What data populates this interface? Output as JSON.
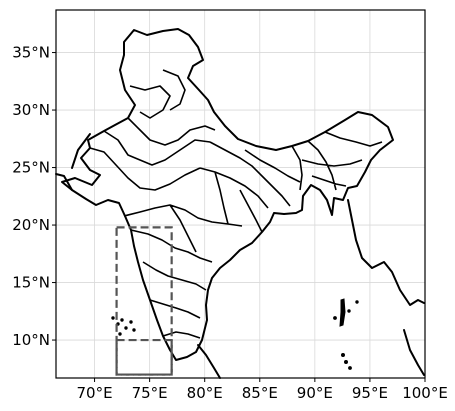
{
  "map": {
    "projection": "PlateCarree",
    "extent": {
      "lon": [
        66.5,
        100
      ],
      "lat": [
        6.7,
        38.7
      ]
    },
    "gridlines": true,
    "colors": {
      "boundary": "#000000",
      "grid": "#d9d9d9",
      "study_box": "#555555",
      "background": "#ffffff"
    },
    "x_ticks": [
      {
        "value": 70,
        "label": "70°E"
      },
      {
        "value": 75,
        "label": "75°E"
      },
      {
        "value": 80,
        "label": "80°E"
      },
      {
        "value": 85,
        "label": "85°E"
      },
      {
        "value": 90,
        "label": "90°E"
      },
      {
        "value": 95,
        "label": "95°E"
      },
      {
        "value": 100,
        "label": "100°E"
      }
    ],
    "y_ticks": [
      {
        "value": 10,
        "label": "10°N"
      },
      {
        "value": 15,
        "label": "15°N"
      },
      {
        "value": 20,
        "label": "20°N"
      },
      {
        "value": 25,
        "label": "25°N"
      },
      {
        "value": 30,
        "label": "30°N"
      },
      {
        "value": 35,
        "label": "35°N"
      }
    ],
    "study_regions": [
      {
        "name": "outer-region",
        "lon": [
          72,
          77
        ],
        "lat": [
          7,
          19.8
        ]
      },
      {
        "name": "southern-subregion",
        "lon": [
          72,
          77
        ],
        "lat": [
          7,
          10
        ]
      }
    ]
  }
}
